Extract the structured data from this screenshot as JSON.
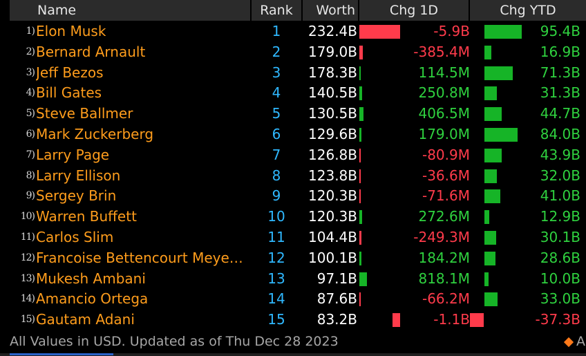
{
  "columns": {
    "name": "Name",
    "rank": "Rank",
    "worth": "Worth",
    "chg_1d": "Chg 1D",
    "chg_ytd": "Chg YTD"
  },
  "rows": [
    {
      "num": "1)",
      "name": "Elon Musk",
      "rank": "1",
      "worth": "232.4B",
      "chg_1d": "-5.9B",
      "chg_1d_value": -5.9,
      "chg_ytd": "95.4B",
      "chg_ytd_value": 95.4
    },
    {
      "num": "2)",
      "name": "Bernard Arnault",
      "rank": "2",
      "worth": "179.0B",
      "chg_1d": "-385.4M",
      "chg_1d_value": -0.3854,
      "chg_ytd": "16.9B",
      "chg_ytd_value": 16.9
    },
    {
      "num": "3)",
      "name": "Jeff Bezos",
      "rank": "3",
      "worth": "178.3B",
      "chg_1d": "114.5M",
      "chg_1d_value": 0.1145,
      "chg_ytd": "71.3B",
      "chg_ytd_value": 71.3
    },
    {
      "num": "4)",
      "name": "Bill Gates",
      "rank": "4",
      "worth": "140.5B",
      "chg_1d": "250.8M",
      "chg_1d_value": 0.2508,
      "chg_ytd": "31.3B",
      "chg_ytd_value": 31.3
    },
    {
      "num": "5)",
      "name": "Steve Ballmer",
      "rank": "5",
      "worth": "130.5B",
      "chg_1d": "406.5M",
      "chg_1d_value": 0.4065,
      "chg_ytd": "44.7B",
      "chg_ytd_value": 44.7
    },
    {
      "num": "6)",
      "name": "Mark Zuckerberg",
      "rank": "6",
      "worth": "129.6B",
      "chg_1d": "179.0M",
      "chg_1d_value": 0.179,
      "chg_ytd": "84.0B",
      "chg_ytd_value": 84.0
    },
    {
      "num": "7)",
      "name": "Larry Page",
      "rank": "7",
      "worth": "126.8B",
      "chg_1d": "-80.9M",
      "chg_1d_value": -0.0809,
      "chg_ytd": "43.9B",
      "chg_ytd_value": 43.9
    },
    {
      "num": "8)",
      "name": "Larry Ellison",
      "rank": "8",
      "worth": "123.8B",
      "chg_1d": "-36.6M",
      "chg_1d_value": -0.0366,
      "chg_ytd": "32.0B",
      "chg_ytd_value": 32.0
    },
    {
      "num": "9)",
      "name": "Sergey Brin",
      "rank": "9",
      "worth": "120.3B",
      "chg_1d": "-71.6M",
      "chg_1d_value": -0.0716,
      "chg_ytd": "41.0B",
      "chg_ytd_value": 41.0
    },
    {
      "num": "10)",
      "name": "Warren Buffett",
      "rank": "10",
      "worth": "120.3B",
      "chg_1d": "272.6M",
      "chg_1d_value": 0.2726,
      "chg_ytd": "12.9B",
      "chg_ytd_value": 12.9
    },
    {
      "num": "11)",
      "name": "Carlos Slim",
      "rank": "11",
      "worth": "104.4B",
      "chg_1d": "-249.3M",
      "chg_1d_value": -0.2493,
      "chg_ytd": "30.1B",
      "chg_ytd_value": 30.1
    },
    {
      "num": "12)",
      "name": "Francoise Bettencourt Meye…",
      "rank": "12",
      "worth": "100.1B",
      "chg_1d": "184.2M",
      "chg_1d_value": 0.1842,
      "chg_ytd": "28.6B",
      "chg_ytd_value": 28.6
    },
    {
      "num": "13)",
      "name": "Mukesh Ambani",
      "rank": "13",
      "worth": "97.1B",
      "chg_1d": "818.1M",
      "chg_1d_value": 0.8181,
      "chg_ytd": "10.0B",
      "chg_ytd_value": 10.0
    },
    {
      "num": "14)",
      "name": "Amancio Ortega",
      "rank": "14",
      "worth": "87.6B",
      "chg_1d": "-66.2M",
      "chg_1d_value": -0.0662,
      "chg_ytd": "33.0B",
      "chg_ytd_value": 33.0
    },
    {
      "num": "15)",
      "name": "Gautam Adani",
      "rank": "15",
      "worth": "83.2B",
      "chg_1d": "-1.1B",
      "chg_1d_value": -1.1,
      "chg_ytd": "-37.3B",
      "chg_ytd_value": -37.3
    }
  ],
  "footer": {
    "text": "All Values in USD. Updated as of Thu Dec 28 2023",
    "corner_letter": "A"
  },
  "colors": {
    "name": "#ff9d1c",
    "rank": "#2fb8ff",
    "positive": "#16b427",
    "negative": "#ff3b4b",
    "header_bg": "#2b2b2b"
  }
}
